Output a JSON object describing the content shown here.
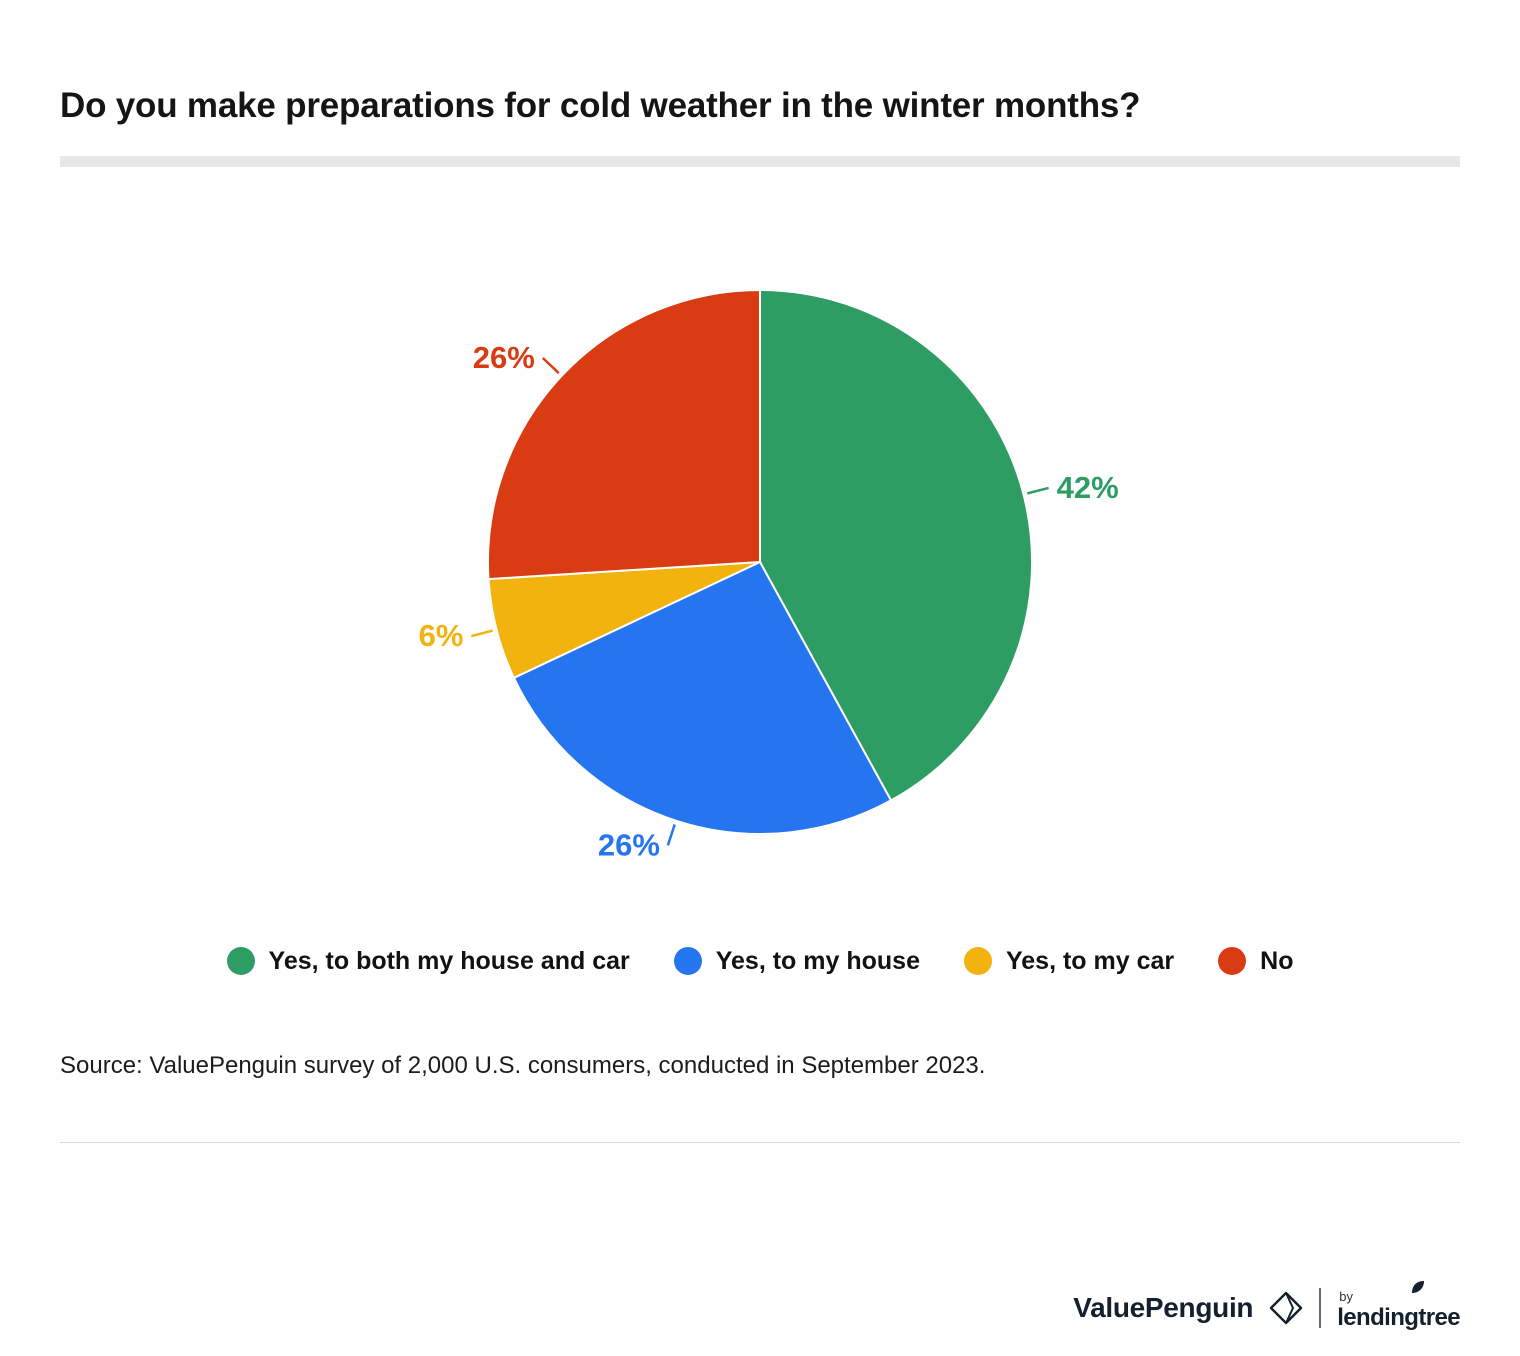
{
  "title": "Do you make preparations for cold weather in the winter months?",
  "source_note": "Source: ValuePenguin survey of 2,000 U.S. consumers, conducted in September 2023.",
  "footer": {
    "brand": "ValuePenguin",
    "by_label": "by",
    "partner_brand": "lendingtree"
  },
  "chart_data": {
    "type": "pie",
    "title": "Do you make preparations for cold weather in the winter months?",
    "start_angle_deg": 0,
    "direction": "clockwise",
    "legend_position": "bottom",
    "slices": [
      {
        "label": "Yes, to both my house and car",
        "value": 42,
        "data_label": "42%",
        "color": "#2e9d63"
      },
      {
        "label": "Yes, to my house",
        "value": 26,
        "data_label": "26%",
        "color": "#2575f0"
      },
      {
        "label": "Yes, to my car",
        "value": 6,
        "data_label": "6%",
        "color": "#f2b30e"
      },
      {
        "label": "No",
        "value": 26,
        "data_label": "26%",
        "color": "#d93b13"
      }
    ]
  }
}
